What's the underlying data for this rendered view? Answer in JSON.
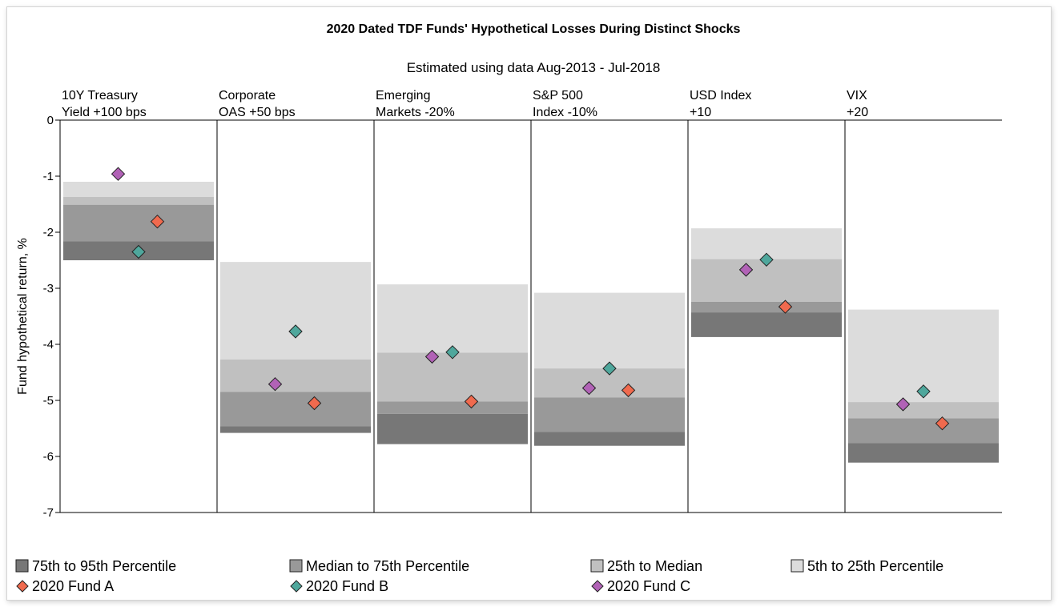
{
  "chart_data": {
    "type": "scatter",
    "title": "2020 Dated TDF Funds' Hypothetical Losses During Distinct Shocks",
    "subtitle": "Estimated using data Aug-2013 - Jul-2018",
    "ylabel": "Fund hypothetical return, %",
    "ylim": [
      -7,
      0
    ],
    "yticks": [
      0,
      -1,
      -2,
      -3,
      -4,
      -5,
      -6,
      -7
    ],
    "grid": false,
    "legend_position": "bottom",
    "categories": [
      {
        "line1": "10Y Treasury",
        "line2": "Yield +100 bps"
      },
      {
        "line1": "Corporate",
        "line2": "OAS +50 bps"
      },
      {
        "line1": "Emerging",
        "line2": "Markets -20%"
      },
      {
        "line1": "S&P 500",
        "line2": "Index -10%"
      },
      {
        "line1": "USD Index",
        "line2": "+10"
      },
      {
        "line1": "VIX",
        "line2": "+20"
      }
    ],
    "bands": [
      {
        "name": "5th to 25th Percentile",
        "color": "#dcdcdc",
        "ranges": [
          [
            -1.1,
            -1.37
          ],
          [
            -2.53,
            -4.27
          ],
          [
            -2.93,
            -4.15
          ],
          [
            -3.08,
            -4.43
          ],
          [
            -1.93,
            -2.48
          ],
          [
            -3.38,
            -5.03
          ]
        ]
      },
      {
        "name": "25th to Median",
        "color": "#c0c0c0",
        "ranges": [
          [
            -1.37,
            -1.51
          ],
          [
            -4.27,
            -4.85
          ],
          [
            -4.15,
            -5.02
          ],
          [
            -4.43,
            -4.95
          ],
          [
            -2.48,
            -3.24
          ],
          [
            -5.03,
            -5.32
          ]
        ]
      },
      {
        "name": "Median to 75th Percentile",
        "color": "#999999",
        "ranges": [
          [
            -1.51,
            -2.16
          ],
          [
            -4.85,
            -5.46
          ],
          [
            -5.02,
            -5.24
          ],
          [
            -4.95,
            -5.56
          ],
          [
            -3.24,
            -3.43
          ],
          [
            -5.32,
            -5.76
          ]
        ]
      },
      {
        "name": "75th to 95th Percentile",
        "color": "#777777",
        "ranges": [
          [
            -2.16,
            -2.5
          ],
          [
            -5.46,
            -5.58
          ],
          [
            -5.24,
            -5.78
          ],
          [
            -5.56,
            -5.81
          ],
          [
            -3.43,
            -3.87
          ],
          [
            -5.76,
            -6.11
          ]
        ]
      }
    ],
    "series": [
      {
        "name": "2020 Fund A",
        "color": "#f06a4e",
        "values": [
          -1.81,
          -5.05,
          -5.02,
          -4.82,
          -3.33,
          -5.41
        ]
      },
      {
        "name": "2020 Fund B",
        "color": "#4fa79c",
        "values": [
          -2.35,
          -3.77,
          -4.14,
          -4.43,
          -2.49,
          -4.84
        ]
      },
      {
        "name": "2020 Fund C",
        "color": "#b162b6",
        "values": [
          -0.96,
          -4.71,
          -4.22,
          -4.78,
          -2.67,
          -5.07
        ]
      }
    ],
    "legend": [
      {
        "label": "75th to 95th Percentile",
        "kind": "square",
        "color": "#777777"
      },
      {
        "label": "Median to 75th Percentile",
        "kind": "square",
        "color": "#999999"
      },
      {
        "label": "25th to Median",
        "kind": "square",
        "color": "#c0c0c0"
      },
      {
        "label": "5th to 25th Percentile",
        "kind": "square",
        "color": "#dcdcdc"
      },
      {
        "label": "2020 Fund A",
        "kind": "diamond",
        "color": "#f06a4e"
      },
      {
        "label": "2020 Fund B",
        "kind": "diamond",
        "color": "#4fa79c"
      },
      {
        "label": "2020 Fund C",
        "kind": "diamond",
        "color": "#b162b6"
      }
    ]
  }
}
